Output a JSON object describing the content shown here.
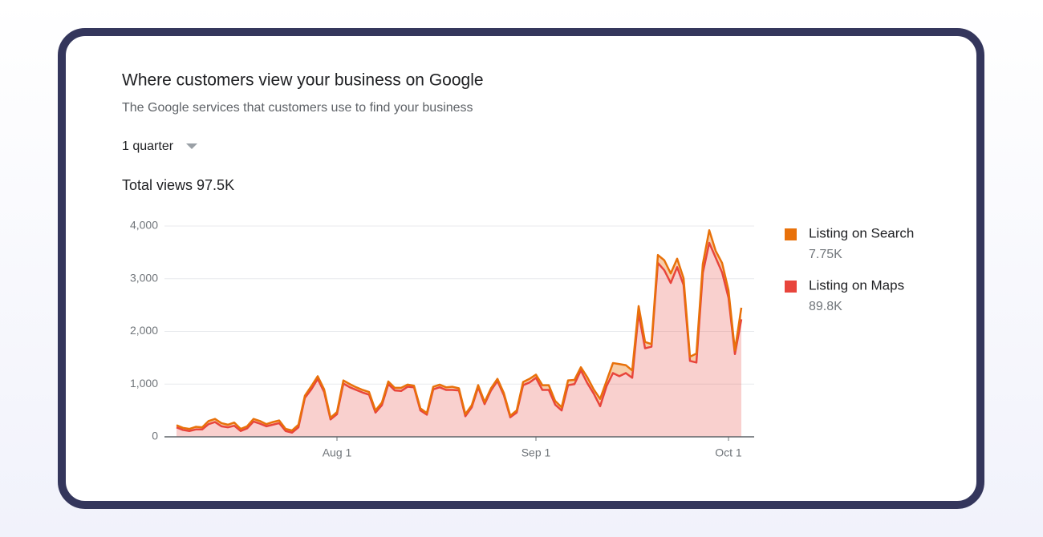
{
  "header": {
    "title": "Where customers view your business on Google",
    "subtitle": "The Google services that customers use to find your business",
    "period": "1 quarter",
    "total": "Total views 97.5K"
  },
  "chart_data": {
    "type": "area",
    "stacked": true,
    "legend": "right",
    "grid": true,
    "categories": [
      null,
      null,
      null,
      null,
      null,
      null,
      null,
      null,
      null,
      null,
      null,
      null,
      null,
      null,
      null,
      null,
      null,
      null,
      null,
      null,
      null,
      null,
      null,
      null,
      null,
      "Aug 1",
      null,
      null,
      null,
      null,
      null,
      null,
      null,
      null,
      null,
      null,
      null,
      null,
      null,
      null,
      null,
      null,
      null,
      null,
      null,
      null,
      null,
      null,
      null,
      null,
      null,
      null,
      null,
      null,
      null,
      null,
      "Sep 1",
      null,
      null,
      null,
      null,
      null,
      null,
      null,
      null,
      null,
      null,
      null,
      null,
      null,
      null,
      null,
      null,
      null,
      null,
      null,
      null,
      null,
      null,
      null,
      null,
      null,
      null,
      null,
      null,
      null,
      "Oct 1",
      null,
      null
    ],
    "series": [
      {
        "name": "Listing on Search",
        "total": "7.75K",
        "color": "#e8710a",
        "values": [
          40,
          40,
          40,
          50,
          40,
          60,
          60,
          60,
          50,
          60,
          40,
          40,
          50,
          50,
          40,
          50,
          50,
          40,
          40,
          50,
          40,
          60,
          50,
          50,
          30,
          40,
          60,
          60,
          50,
          50,
          50,
          40,
          50,
          50,
          50,
          60,
          40,
          30,
          40,
          30,
          50,
          50,
          50,
          60,
          40,
          40,
          40,
          40,
          40,
          40,
          40,
          40,
          30,
          40,
          60,
          70,
          60,
          90,
          90,
          70,
          60,
          90,
          80,
          60,
          110,
          80,
          140,
          100,
          190,
          230,
          150,
          140,
          130,
          120,
          50,
          150,
          190,
          180,
          160,
          130,
          80,
          170,
          170,
          240,
          130,
          180,
          140,
          70,
          220
        ]
      },
      {
        "name": "Listing on Maps",
        "total": "89.8K",
        "color": "#e8453c",
        "values": [
          180,
          130,
          110,
          140,
          140,
          240,
          280,
          200,
          180,
          210,
          110,
          160,
          290,
          250,
          200,
          230,
          260,
          110,
          80,
          180,
          740,
          900,
          1100,
          850,
          330,
          430,
          1010,
          940,
          890,
          840,
          800,
          460,
          600,
          1000,
          880,
          870,
          950,
          940,
          500,
          420,
          900,
          940,
          890,
          890,
          880,
          390,
          560,
          940,
          620,
          880,
          1060,
          790,
          370,
          460,
          980,
          1030,
          1120,
          890,
          890,
          610,
          500,
          980,
          1000,
          1260,
          1020,
          820,
          580,
          960,
          1210,
          1150,
          1210,
          1120,
          2350,
          1680,
          1710,
          3300,
          3160,
          2920,
          3220,
          2880,
          1440,
          1410,
          3110,
          3680,
          3400,
          3120,
          2640,
          1570,
          2230
        ]
      }
    ],
    "ylim": [
      0,
      4000
    ],
    "yticks": [
      0,
      {
        "value": 1000,
        "label": "1,000"
      },
      {
        "value": 2000,
        "label": "2,000"
      },
      {
        "value": 3000,
        "label": "3,000"
      },
      {
        "value": 4000,
        "label": "4,000"
      }
    ]
  }
}
